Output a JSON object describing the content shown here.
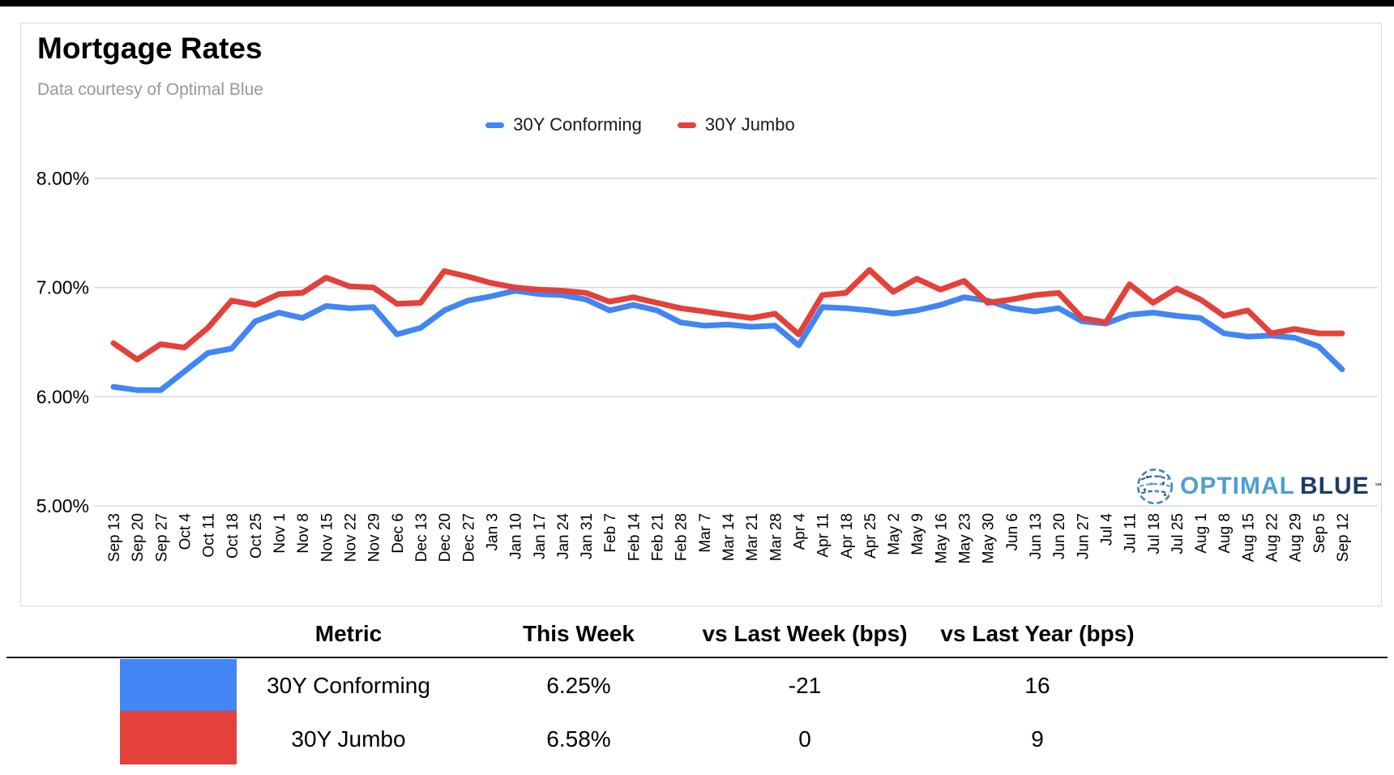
{
  "header": {
    "title": "Mortgage Rates",
    "subtitle": "Data courtesy of Optimal Blue"
  },
  "legend": [
    {
      "label": "30Y Conforming",
      "color": "#4285F4"
    },
    {
      "label": "30Y Jumbo",
      "color": "#E3413A"
    }
  ],
  "logo": {
    "word_primary": "OPTIMAL",
    "word_secondary": "BLUE",
    "trademark": "℠",
    "color_primary": "#4D9FD0",
    "color_secondary": "#1E3A68"
  },
  "chart_data": {
    "type": "line",
    "title": "Mortgage Rates",
    "ylabel": "",
    "xlabel": "",
    "ylim": [
      5.0,
      8.0
    ],
    "yticks": [
      "8.00%",
      "7.00%",
      "6.00%",
      "5.00%"
    ],
    "ytick_values": [
      8.0,
      7.0,
      6.0,
      5.0
    ],
    "grid": true,
    "legend_position": "top",
    "x": [
      "Sep 13",
      "Sep 20",
      "Sep 27",
      "Oct 4",
      "Oct 11",
      "Oct 18",
      "Oct 25",
      "Nov 1",
      "Nov 8",
      "Nov 15",
      "Nov 22",
      "Nov 29",
      "Dec 6",
      "Dec 13",
      "Dec 20",
      "Dec 27",
      "Jan 3",
      "Jan 10",
      "Jan 17",
      "Jan 24",
      "Jan 31",
      "Feb 7",
      "Feb 14",
      "Feb 21",
      "Feb 28",
      "Mar 7",
      "Mar 14",
      "Mar 21",
      "Mar 28",
      "Apr 4",
      "Apr 11",
      "Apr 18",
      "Apr 25",
      "May 2",
      "May 9",
      "May 16",
      "May 23",
      "May 30",
      "Jun 6",
      "Jun 13",
      "Jun 20",
      "Jun 27",
      "Jul 4",
      "Jul 11",
      "Jul 18",
      "Jul 25",
      "Aug 1",
      "Aug 8",
      "Aug 15",
      "Aug 22",
      "Aug 29",
      "Sep 5",
      "Sep 12"
    ],
    "series": [
      {
        "name": "30Y Conforming",
        "key": "conforming-line",
        "color": "#4285F4",
        "values": [
          6.09,
          6.06,
          6.06,
          6.23,
          6.4,
          6.44,
          6.69,
          6.77,
          6.72,
          6.83,
          6.81,
          6.82,
          6.57,
          6.63,
          6.79,
          6.88,
          6.92,
          6.97,
          6.94,
          6.93,
          6.89,
          6.79,
          6.84,
          6.79,
          6.68,
          6.65,
          6.66,
          6.64,
          6.65,
          6.47,
          6.82,
          6.81,
          6.79,
          6.76,
          6.79,
          6.84,
          6.91,
          6.88,
          6.81,
          6.78,
          6.81,
          6.69,
          6.67,
          6.75,
          6.77,
          6.74,
          6.72,
          6.58,
          6.55,
          6.56,
          6.54,
          6.46,
          6.25
        ]
      },
      {
        "name": "30Y Jumbo",
        "key": "jumbo-line",
        "color": "#E3413A",
        "values": [
          6.49,
          6.34,
          6.48,
          6.45,
          6.63,
          6.88,
          6.84,
          6.94,
          6.95,
          7.09,
          7.01,
          7.0,
          6.85,
          6.86,
          7.15,
          7.1,
          7.04,
          7.0,
          6.98,
          6.97,
          6.95,
          6.87,
          6.91,
          6.86,
          6.81,
          6.78,
          6.75,
          6.72,
          6.76,
          6.57,
          6.93,
          6.95,
          7.16,
          6.96,
          7.08,
          6.98,
          7.06,
          6.86,
          6.89,
          6.93,
          6.95,
          6.72,
          6.68,
          7.03,
          6.86,
          6.99,
          6.89,
          6.74,
          6.79,
          6.58,
          6.62,
          6.58,
          6.58
        ]
      }
    ]
  },
  "table": {
    "headers": [
      "Metric",
      "This Week",
      "vs Last Week (bps)",
      "vs Last Year (bps)"
    ],
    "rows": [
      {
        "metric": "30Y Conforming",
        "this_week": "6.25%",
        "vs_last_week": "-21",
        "vs_last_year": "16",
        "color": "#4285F4"
      },
      {
        "metric": "30Y Jumbo",
        "this_week": "6.58%",
        "vs_last_week": "0",
        "vs_last_year": "9",
        "color": "#E3413A"
      }
    ]
  }
}
